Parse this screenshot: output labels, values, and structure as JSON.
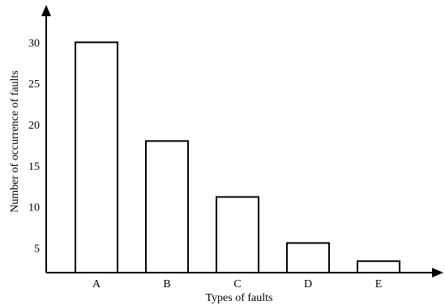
{
  "chart_data": {
    "type": "bar",
    "categories": [
      "A",
      "B",
      "C",
      "D",
      "E"
    ],
    "values": [
      30,
      18,
      11.2,
      5.6,
      3.4
    ],
    "title": "",
    "xlabel": "Types of faults",
    "ylabel": "Number of occurrence of faults",
    "ylim": [
      2,
      32
    ],
    "yticks": [
      5,
      10,
      15,
      20,
      25,
      30
    ],
    "grid": false,
    "legend": "none",
    "colors": {
      "bar_fill": "#ffffff",
      "bar_stroke": "#000000",
      "axis": "#000000"
    }
  }
}
